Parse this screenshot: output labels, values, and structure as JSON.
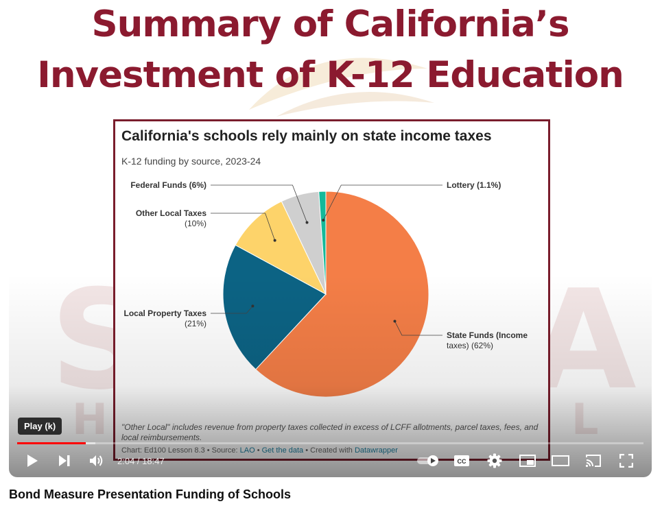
{
  "slide": {
    "title_line1": "Summary of California’s",
    "title_line2": "Investment of K-12 Education",
    "watermark_left": "S",
    "watermark_right": "A",
    "watermark_h": "H",
    "watermark_l": "L"
  },
  "chart_data": {
    "type": "pie",
    "title": "California's schools rely mainly on state income taxes",
    "subtitle": "K-12 funding by source, 2023-24",
    "slices": [
      {
        "label": "State Funds (Income taxes)",
        "line1": "State Funds (Income",
        "line2": "taxes) (62%)",
        "value": 62,
        "color": "#f47e47"
      },
      {
        "label": "Local Property Taxes",
        "line1": "Local Property Taxes",
        "line2": "(21%)",
        "value": 21,
        "color": "#0c6384"
      },
      {
        "label": "Other Local Taxes",
        "line1": "Other Local Taxes",
        "line2": "(10%)",
        "value": 10,
        "color": "#fdd36a"
      },
      {
        "label": "Federal Funds",
        "line1": "Federal Funds (6%)",
        "line2": "",
        "value": 6,
        "color": "#cfcfcf"
      },
      {
        "label": "Lottery",
        "line1": "Lottery (1.1%)",
        "line2": "",
        "value": 1.1,
        "color": "#14b99a"
      }
    ],
    "note_line1": "\"Other Local\" includes revenue from property taxes collected in excess of LCFF allotments, parcel taxes, fees, and",
    "note_line2": "local reimbursements.",
    "footer": {
      "prefix": "Chart: Ed100 Lesson 8.3 • Source: ",
      "source": "LAO",
      "sep1": " • ",
      "get_data": "Get the data",
      "sep2": " • Created with ",
      "tool": "Datawrapper"
    }
  },
  "player": {
    "tooltip": "Play (k)",
    "current_time": "2:04",
    "duration": "18:47",
    "progress": 0.11,
    "buffered": 0.125,
    "time_separator": " / ",
    "icons": [
      "play-icon",
      "next-icon",
      "volume-icon",
      "autoplay-toggle",
      "captions-icon",
      "settings-icon",
      "miniplayer-icon",
      "theater-icon",
      "cast-icon",
      "fullscreen-icon"
    ],
    "accent": "#ff0000"
  },
  "video": {
    "title": "Bond Measure Presentation Funding of Schools"
  }
}
